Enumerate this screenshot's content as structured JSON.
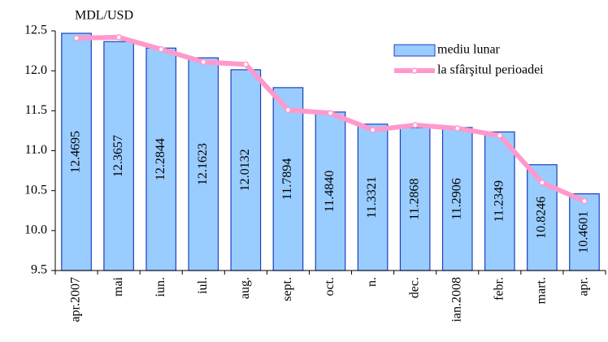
{
  "chart_data": {
    "type": "bar",
    "ylabel": "MDL/USD",
    "categories": [
      "apr.2007",
      "mai",
      "iun.",
      "iul.",
      "aug.",
      "sept.",
      "oct.",
      "n.",
      "dec.",
      "ian.2008",
      "febr.",
      "mart.",
      "apr."
    ],
    "series": [
      {
        "name": "mediu lunar",
        "type": "bar",
        "color": "#99ccff",
        "edge": "#1f3fbf",
        "values": [
          12.4695,
          12.3657,
          12.2844,
          12.1623,
          12.0132,
          11.7894,
          11.484,
          11.3321,
          11.2868,
          11.2906,
          11.2349,
          10.8246,
          10.4601
        ],
        "value_labels": [
          "12.4695",
          "12.3657",
          "12.2844",
          "12.1623",
          "12.0132",
          "11.7894",
          "11.4840",
          "11.3321",
          "11.2868",
          "11.2906",
          "11.2349",
          "10.8246",
          "10.4601"
        ]
      },
      {
        "name": "la sfârşitul perioadei",
        "type": "line",
        "color": "#ff99cc",
        "values": [
          12.41,
          12.42,
          12.27,
          12.11,
          12.08,
          11.51,
          11.47,
          11.26,
          11.32,
          11.28,
          11.19,
          10.6,
          10.37
        ]
      }
    ],
    "ylim": [
      9.5,
      12.5
    ],
    "yticks": [
      {
        "value": 9.5,
        "label": "9.5"
      },
      {
        "value": 10,
        "label": "10.0"
      },
      {
        "value": 10.5,
        "label": "10.5"
      },
      {
        "value": 11,
        "label": "11.0"
      },
      {
        "value": 11.5,
        "label": "11.5"
      },
      {
        "value": 12,
        "label": "12.0"
      },
      {
        "value": 12.5,
        "label": "12.5"
      }
    ],
    "legend": "upper right"
  }
}
